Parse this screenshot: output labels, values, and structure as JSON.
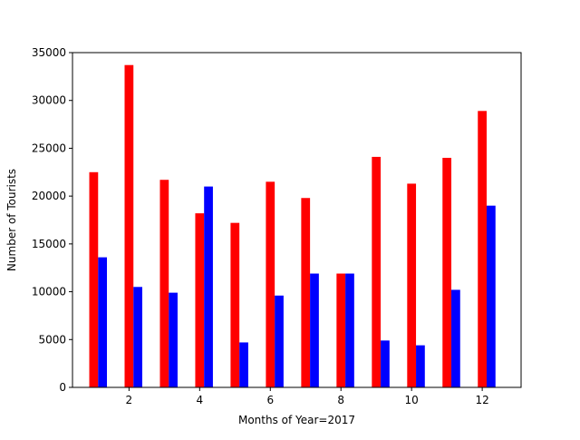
{
  "chart_data": {
    "type": "bar",
    "title": "",
    "xlabel": "Months of Year=2017",
    "ylabel": "Number of Tourists",
    "x": [
      1,
      2,
      3,
      4,
      5,
      6,
      7,
      8,
      9,
      10,
      11,
      12
    ],
    "series": [
      {
        "color": "#ff0000",
        "values": [
          22500,
          33700,
          21700,
          18200,
          17200,
          21500,
          19800,
          11900,
          24100,
          21300,
          24000,
          28900
        ]
      },
      {
        "color": "#0000ff",
        "values": [
          13600,
          10500,
          9900,
          21000,
          4700,
          9600,
          11900,
          11900,
          4900,
          4400,
          10200,
          19000
        ]
      }
    ],
    "xlim": [
      0.4,
      13.1
    ],
    "ylim": [
      0,
      35000
    ],
    "xticks": [
      2,
      4,
      6,
      8,
      10,
      12
    ],
    "yticks": [
      0,
      5000,
      10000,
      15000,
      20000,
      25000,
      30000,
      35000
    ],
    "bar_width": 0.25,
    "grid": false,
    "legend": "none"
  }
}
